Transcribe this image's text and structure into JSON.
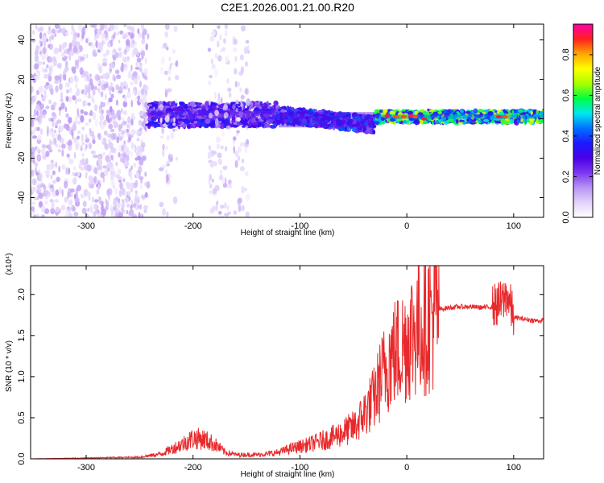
{
  "chart_data": [
    {
      "type": "heatmap",
      "title": "C2E1.2026.001.21.00.R20",
      "xlabel": "Height of straight line (km)",
      "ylabel": "Frequency (Hz)",
      "xlim": [
        -352,
        128
      ],
      "ylim": [
        -50,
        48
      ],
      "xticks": [
        -300,
        -200,
        -100,
        0,
        100
      ],
      "yticks": [
        -40,
        -20,
        0,
        20,
        40
      ],
      "colorbar": {
        "label": "Normalized spectral amplitude",
        "range": [
          0,
          0.95
        ],
        "ticks": [
          0.0,
          0.2,
          0.4,
          0.6,
          0.8
        ],
        "tick_labels": [
          "0.0",
          "0.2",
          "0.4",
          "0.6",
          "0.8"
        ],
        "colormap": [
          "#ffffff",
          "#e2d2fb",
          "#b894f3",
          "#7a36f0",
          "#4a00e6",
          "#1a1aff",
          "#0072ff",
          "#00e8f0",
          "#00ff40",
          "#aaff00",
          "#ffff00",
          "#ffa500",
          "#ff2020",
          "#ff00aa"
        ]
      },
      "regions": [
        {
          "x": [
            -352,
            -242
          ],
          "freq": [
            -50,
            48
          ],
          "amplitude": 0.12,
          "description": "scattered noise"
        },
        {
          "x": [
            -242,
            -120
          ],
          "freq_center": 2,
          "freq_halfwidth": 6,
          "amplitude": 0.3
        },
        {
          "x": [
            -120,
            -30
          ],
          "freq_center_start": 2,
          "freq_center_end": -3,
          "freq_halfwidth": 4,
          "amplitude": 0.35
        },
        {
          "x": [
            -30,
            128
          ],
          "freq_center": 1,
          "freq_halfwidth": 3,
          "amplitude": 0.55
        },
        {
          "x": [
            -230,
            -215
          ],
          "freq": [
            -50,
            48
          ],
          "amplitude": 0.1
        },
        {
          "x": [
            -185,
            -165
          ],
          "freq": [
            -50,
            48
          ],
          "amplitude": 0.1
        },
        {
          "x": [
            -162,
            -148
          ],
          "freq": [
            -50,
            48
          ],
          "amplitude": 0.1
        }
      ],
      "peaks": [
        {
          "x": -18,
          "freq": 1.5,
          "amplitude": 0.9
        },
        {
          "x": -10,
          "freq": 1,
          "amplitude": 0.85
        },
        {
          "x": -3,
          "freq": 1,
          "amplitude": 0.85
        },
        {
          "x": 4,
          "freq": 1.5,
          "amplitude": 0.9
        },
        {
          "x": 8,
          "freq": 1,
          "amplitude": 0.85
        },
        {
          "x": 16,
          "freq": 0,
          "amplitude": 0.9
        },
        {
          "x": 86,
          "freq": 1,
          "amplitude": 0.9
        },
        {
          "x": 92,
          "freq": 1,
          "amplitude": 0.85
        }
      ]
    },
    {
      "type": "line",
      "xlabel": "Height of straight line (km)",
      "ylabel": "SNR (10 * v/v)",
      "y_multiplier_label": "(x10⁴)",
      "xlim": [
        -352,
        128
      ],
      "ylim": [
        0.0,
        2.35
      ],
      "xticks": [
        -300,
        -200,
        -100,
        0,
        100
      ],
      "yticks": [
        0.0,
        0.5,
        1.0,
        1.5,
        2.0
      ],
      "ytick_labels": [
        "0.0",
        "0.5",
        "1.0",
        "1.5",
        "2.0"
      ],
      "series": [
        {
          "color": "#e8292b",
          "x": [
            -352,
            -300,
            -250,
            -230,
            -210,
            -200,
            -190,
            -180,
            -170,
            -160,
            -150,
            -140,
            -130,
            -120,
            -110,
            -100,
            -90,
            -80,
            -70,
            -60,
            -50,
            -45,
            -40,
            -35,
            -30,
            -25,
            -20,
            -15,
            -10,
            -5,
            0,
            5,
            10,
            15,
            20,
            25,
            30,
            40,
            50,
            60,
            70,
            80,
            85,
            90,
            93,
            95,
            100,
            110,
            120,
            128
          ],
          "y": [
            0.0,
            0.01,
            0.02,
            0.06,
            0.18,
            0.25,
            0.24,
            0.18,
            0.08,
            0.05,
            0.05,
            0.05,
            0.06,
            0.08,
            0.12,
            0.15,
            0.18,
            0.22,
            0.26,
            0.32,
            0.38,
            0.45,
            0.55,
            0.65,
            0.75,
            0.95,
            1.1,
            1.25,
            1.3,
            1.35,
            1.45,
            1.55,
            1.6,
            1.65,
            1.7,
            1.75,
            1.82,
            1.84,
            1.85,
            1.85,
            1.84,
            1.85,
            1.88,
            1.9,
            2.0,
            1.95,
            1.72,
            1.7,
            1.68,
            1.68
          ]
        }
      ]
    }
  ]
}
